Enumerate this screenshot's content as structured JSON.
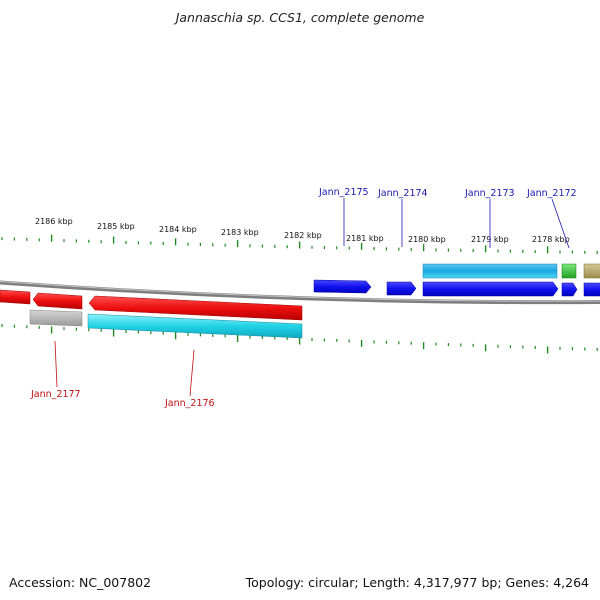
{
  "title": "Jannaschia sp. CCS1, complete genome",
  "footer": {
    "accession": "Accession: NC_007802",
    "summary": "Topology: circular; Length: 4,317,977 bp; Genes: 4,264"
  },
  "colors": {
    "tick": "#1f8a1f",
    "backbone": "#8a8a8a",
    "forward_gene": "#1a1aff",
    "reverse_gene": "#ff1a1a",
    "forward_label": "#1a1ab0",
    "reverse_label": "#c01010",
    "cyan": "#25d8ea",
    "gray": "#b4b4b4",
    "green": "#3cc63c",
    "olive": "#b8a86a"
  },
  "scale_labels": [
    "2186 kbp",
    "2185 kbp",
    "2184 kbp",
    "2183 kbp",
    "2182 kbp",
    "2181 kbp",
    "2180 kbp",
    "2179 kbp",
    "2178 kbp"
  ],
  "gene_labels_forward": [
    "Jann_2175",
    "Jann_2174",
    "Jann_2173",
    "Jann_2172"
  ],
  "gene_labels_reverse": [
    "Jann_2177",
    "Jann_2176"
  ]
}
